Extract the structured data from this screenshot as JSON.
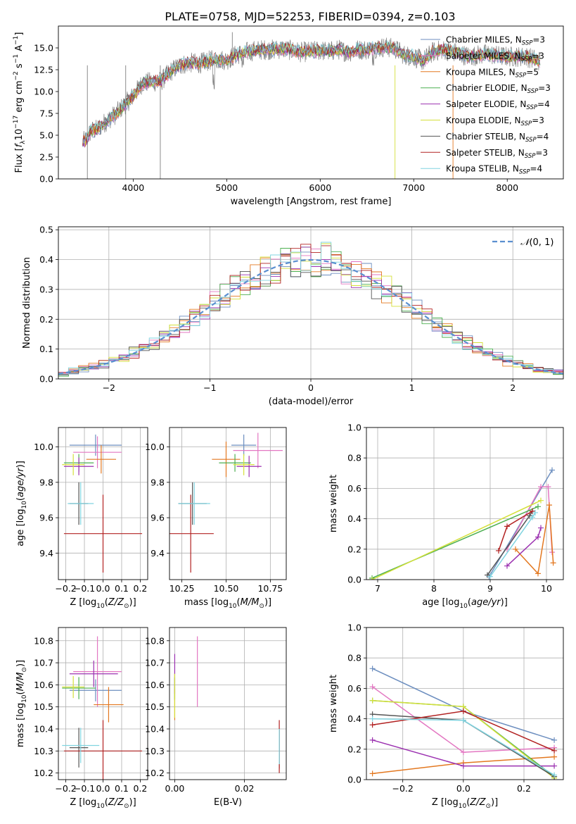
{
  "figure": {
    "title": "PLATE=0758, MJD=52253, FIBERID=0394, z=0.103"
  },
  "chart_data": [
    {
      "id": "spectrum",
      "type": "line",
      "xlabel": "wavelength [Angstrom, rest frame]",
      "ylabel": "Flux [f_λ 10^-17 erg cm^-2 s^-1 A^-1]",
      "xlim": [
        3200,
        8600
      ],
      "ylim": [
        0,
        17.5
      ],
      "xticks": [
        4000,
        5000,
        6000,
        7000,
        8000
      ],
      "yticks": [
        0.0,
        2.5,
        5.0,
        7.5,
        10.0,
        12.5,
        15.0
      ],
      "grid": false,
      "legend_position": "right",
      "data_color": "#7f7f7f",
      "data_x": [
        3460,
        3500,
        3550,
        3600,
        3650,
        3700,
        3800,
        3900,
        4000,
        4100,
        4200,
        4300,
        4400,
        4500,
        4600,
        4700,
        4800,
        4900,
        5000,
        5100,
        5200,
        5300,
        5400,
        5500,
        5600,
        5700,
        5800,
        5900,
        6000,
        6100,
        6200,
        6300,
        6400,
        6500,
        6600,
        6700,
        6800,
        6900,
        7000,
        7100,
        7200,
        7300,
        7400,
        7500,
        7600,
        7700,
        7800,
        7900,
        8000,
        8100,
        8200,
        8350
      ],
      "data_y": [
        4.2,
        4.5,
        5.5,
        5.6,
        6.0,
        6.5,
        7.3,
        8.4,
        9.5,
        11.0,
        11.1,
        11.2,
        12.3,
        13.0,
        13.3,
        13.2,
        13.5,
        13.7,
        13.6,
        14.2,
        14.5,
        14.7,
        14.8,
        14.8,
        14.9,
        14.7,
        14.5,
        14.6,
        14.7,
        14.6,
        14.8,
        14.5,
        14.8,
        14.8,
        15.0,
        15.1,
        14.9,
        14.2,
        14.0,
        13.5,
        14.5,
        14.8,
        14.6,
        14.3,
        14.0,
        14.2,
        14.3,
        14.1,
        14.0,
        14.0,
        14.0,
        13.5
      ],
      "series": [
        {
          "name": "Chabrier MILES, N_SSP=3",
          "label_main": "Chabrier MILES, N",
          "label_sub": "SSP",
          "label_tail": "=3",
          "color": "#6c8ebf"
        },
        {
          "name": "Salpeter MILES, N_SSP=3",
          "label_main": "Salpeter MILES, N",
          "label_sub": "SSP",
          "label_tail": "=3",
          "color": "#e377c2"
        },
        {
          "name": "Kroupa MILES, N_SSP=5",
          "label_main": "Kroupa MILES, N",
          "label_sub": "SSP",
          "label_tail": "=5",
          "color": "#e37820"
        },
        {
          "name": "Chabrier ELODIE, N_SSP=3",
          "label_main": "Chabrier ELODIE, N",
          "label_sub": "SSP",
          "label_tail": "=3",
          "color": "#4caf50"
        },
        {
          "name": "Salpeter ELODIE, N_SSP=4",
          "label_main": "Salpeter ELODIE, N",
          "label_sub": "SSP",
          "label_tail": "=4",
          "color": "#9b30b0"
        },
        {
          "name": "Kroupa ELODIE, N_SSP=3",
          "label_main": "Kroupa ELODIE, N",
          "label_sub": "SSP",
          "label_tail": "=3",
          "color": "#d4e03a"
        },
        {
          "name": "Chabrier STELIB, N_SSP=4",
          "label_main": "Chabrier STELIB, N",
          "label_sub": "SSP",
          "label_tail": "=4",
          "color": "#555555"
        },
        {
          "name": "Salpeter STELIB, N_SSP=3",
          "label_main": "Salpeter STELIB, N",
          "label_sub": "SSP",
          "label_tail": "=3",
          "color": "#b22222"
        },
        {
          "name": "Kroupa STELIB, N_SSP=4",
          "label_main": "Kroupa STELIB, N",
          "label_sub": "SSP",
          "label_tail": "=4",
          "color": "#80d4e0"
        }
      ]
    },
    {
      "id": "residuals",
      "type": "line",
      "xlabel": "(data-model)/error",
      "ylabel": "Normed distribution",
      "xlim": [
        -2.5,
        2.5
      ],
      "ylim": [
        0,
        0.51
      ],
      "xticks": [
        -2,
        -1,
        0,
        1,
        2
      ],
      "yticks": [
        0.0,
        0.1,
        0.2,
        0.3,
        0.4,
        0.5
      ],
      "grid": true,
      "legend_position": "top-right",
      "reference_label": "N(0,1)",
      "reference_color": "#5b8fd0",
      "bin_width": 0.1
    },
    {
      "id": "age_vs_Z",
      "type": "scatter",
      "xlabel": "Z [log10(Z/Z☉)]",
      "ylabel": "age [log10(age/yr)]",
      "xlim": [
        -0.24,
        0.24
      ],
      "ylim": [
        9.25,
        10.11
      ],
      "xticks": [
        -0.2,
        -0.1,
        0.0,
        0.1,
        0.2
      ],
      "yticks": [
        9.4,
        9.6,
        9.8,
        10.0
      ],
      "grid": true,
      "points": [
        {
          "series": 0,
          "x": -0.04,
          "y": 10.01,
          "xerr": 0.14,
          "yerr": 0.06
        },
        {
          "series": 1,
          "x": -0.03,
          "y": 9.97,
          "xerr": 0.13,
          "yerr": 0.09
        },
        {
          "series": 2,
          "x": -0.01,
          "y": 9.93,
          "xerr": 0.08,
          "yerr": 0.08
        },
        {
          "series": 3,
          "x": -0.13,
          "y": 9.91,
          "xerr": 0.08,
          "yerr": 0.05
        },
        {
          "series": 4,
          "x": -0.13,
          "y": 9.89,
          "xerr": 0.08,
          "yerr": 0.05
        },
        {
          "series": 5,
          "x": -0.16,
          "y": 9.9,
          "xerr": 0.06,
          "yerr": 0.06
        },
        {
          "series": 6,
          "x": -0.13,
          "y": 9.68,
          "xerr": 0.05,
          "yerr": 0.12
        },
        {
          "series": 7,
          "x": 0.0,
          "y": 9.51,
          "xerr": 0.21,
          "yerr": 0.22
        },
        {
          "series": 8,
          "x": -0.12,
          "y": 9.68,
          "xerr": 0.07,
          "yerr": 0.12
        }
      ]
    },
    {
      "id": "age_vs_mass",
      "type": "scatter",
      "xlabel": "mass [log10(M/M☉)]",
      "ylabel": "",
      "xlim": [
        10.18,
        10.84
      ],
      "ylim": [
        9.25,
        10.11
      ],
      "xticks": [
        10.25,
        10.5,
        10.75
      ],
      "yticks": [
        9.4,
        9.6,
        9.8,
        10.0
      ],
      "grid": true,
      "points": [
        {
          "series": 0,
          "x": 10.6,
          "y": 10.01,
          "xerr": 0.07,
          "yerr": 0.06
        },
        {
          "series": 1,
          "x": 10.68,
          "y": 9.98,
          "xerr": 0.14,
          "yerr": 0.1
        },
        {
          "series": 2,
          "x": 10.5,
          "y": 9.93,
          "xerr": 0.08,
          "yerr": 0.1
        },
        {
          "series": 3,
          "x": 10.55,
          "y": 9.91,
          "xerr": 0.09,
          "yerr": 0.05
        },
        {
          "series": 4,
          "x": 10.63,
          "y": 9.89,
          "xerr": 0.07,
          "yerr": 0.06
        },
        {
          "series": 5,
          "x": 10.6,
          "y": 9.9,
          "xerr": 0.06,
          "yerr": 0.06
        },
        {
          "series": 6,
          "x": 10.31,
          "y": 9.68,
          "xerr": 0.08,
          "yerr": 0.12
        },
        {
          "series": 7,
          "x": 10.3,
          "y": 9.51,
          "xerr": 0.13,
          "yerr": 0.22
        },
        {
          "series": 8,
          "x": 10.32,
          "y": 9.68,
          "xerr": 0.09,
          "yerr": 0.12
        }
      ]
    },
    {
      "id": "weight_vs_age",
      "type": "line",
      "xlabel": "age [log10(age/yr)]",
      "ylabel": "mass weight",
      "xlim": [
        6.8,
        10.3
      ],
      "ylim": [
        0,
        1.0
      ],
      "xticks": [
        7,
        8,
        9,
        10
      ],
      "yticks": [
        0.0,
        0.2,
        0.4,
        0.6,
        0.8,
        1.0
      ],
      "grid": true,
      "series_points": [
        {
          "series": 0,
          "x": [
            8.98,
            10.1
          ],
          "y": [
            0.02,
            0.72
          ]
        },
        {
          "series": 1,
          "x": [
            9.3,
            9.9,
            10.03,
            10.1
          ],
          "y": [
            0.2,
            0.61,
            0.61,
            0.18
          ]
        },
        {
          "series": 2,
          "x": [
            9.45,
            9.85,
            10.05,
            10.12
          ],
          "y": [
            0.2,
            0.04,
            0.49,
            0.11
          ]
        },
        {
          "series": 3,
          "x": [
            6.9,
            9.85
          ],
          "y": [
            0.01,
            0.48
          ]
        },
        {
          "series": 4,
          "x": [
            9.3,
            9.85,
            9.9
          ],
          "y": [
            0.09,
            0.28,
            0.34
          ]
        },
        {
          "series": 5,
          "x": [
            6.9,
            9.9
          ],
          "y": [
            0.0,
            0.52
          ]
        },
        {
          "series": 6,
          "x": [
            8.95,
            9.7,
            9.75
          ],
          "y": [
            0.03,
            0.42,
            0.45
          ]
        },
        {
          "series": 7,
          "x": [
            9.15,
            9.3,
            9.75
          ],
          "y": [
            0.19,
            0.35,
            0.45
          ]
        },
        {
          "series": 8,
          "x": [
            9.0,
            9.75,
            9.8
          ],
          "y": [
            0.02,
            0.41,
            0.44
          ]
        }
      ]
    },
    {
      "id": "mass_vs_Z",
      "type": "scatter",
      "xlabel": "Z [log10(Z/Z☉)]",
      "ylabel": "mass [log10(M/M☉)]",
      "xlim": [
        -0.24,
        0.24
      ],
      "ylim": [
        10.17,
        10.86
      ],
      "xticks": [
        -0.2,
        -0.1,
        0.0,
        0.1,
        0.2
      ],
      "yticks": [
        10.2,
        10.3,
        10.4,
        10.5,
        10.6,
        10.7,
        10.8
      ],
      "grid": true,
      "points": [
        {
          "series": 0,
          "x": -0.04,
          "y": 10.575,
          "xerr": 0.14,
          "yerr": 0.05
        },
        {
          "series": 1,
          "x": -0.03,
          "y": 10.66,
          "xerr": 0.13,
          "yerr": 0.16
        },
        {
          "series": 2,
          "x": 0.03,
          "y": 10.51,
          "xerr": 0.08,
          "yerr": 0.08
        },
        {
          "series": 3,
          "x": -0.13,
          "y": 10.585,
          "xerr": 0.09,
          "yerr": 0.05
        },
        {
          "series": 4,
          "x": -0.05,
          "y": 10.65,
          "xerr": 0.13,
          "yerr": 0.06
        },
        {
          "series": 5,
          "x": -0.16,
          "y": 10.59,
          "xerr": 0.06,
          "yerr": 0.05
        },
        {
          "series": 6,
          "x": -0.13,
          "y": 10.315,
          "xerr": 0.05,
          "yerr": 0.09
        },
        {
          "series": 7,
          "x": 0.0,
          "y": 10.3,
          "xerr": 0.21,
          "yerr": 0.14
        },
        {
          "series": 8,
          "x": -0.12,
          "y": 10.325,
          "xerr": 0.1,
          "yerr": 0.08
        }
      ]
    },
    {
      "id": "mass_vs_EBV",
      "type": "scatter",
      "xlabel": "E(B-V)",
      "ylabel": "",
      "xlim": [
        -0.0015,
        0.032
      ],
      "ylim": [
        10.17,
        10.86
      ],
      "xticks": [
        0.0,
        0.02
      ],
      "yticks": [
        10.2,
        10.3,
        10.4,
        10.5,
        10.6,
        10.7,
        10.8
      ],
      "grid": true,
      "points": [
        {
          "series": 0,
          "x": 0.0,
          "y": 10.58,
          "xerr": 0,
          "yerr": 0.05
        },
        {
          "series": 1,
          "x": 0.0065,
          "y": 10.66,
          "xerr": 0,
          "yerr": 0.16
        },
        {
          "series": 2,
          "x": 0.0,
          "y": 10.51,
          "xerr": 0,
          "yerr": 0.07
        },
        {
          "series": 3,
          "x": 0.0,
          "y": 10.585,
          "xerr": 0,
          "yerr": 0.05
        },
        {
          "series": 4,
          "x": 0.0,
          "y": 10.65,
          "xerr": 0,
          "yerr": 0.09
        },
        {
          "series": 5,
          "x": 0.0,
          "y": 10.55,
          "xerr": 0,
          "yerr": 0.1
        },
        {
          "series": 6,
          "x": 0.03,
          "y": 10.31,
          "xerr": 0,
          "yerr": 0.09
        },
        {
          "series": 7,
          "x": 0.03,
          "y": 10.32,
          "xerr": 0,
          "yerr": 0.12
        },
        {
          "series": 8,
          "x": 0.03,
          "y": 10.32,
          "xerr": 0,
          "yerr": 0.08
        }
      ]
    },
    {
      "id": "weight_vs_Z",
      "type": "line",
      "xlabel": "Z [log10(Z/Z☉)]",
      "ylabel": "mass weight",
      "xlim": [
        -0.32,
        0.33
      ],
      "ylim": [
        0,
        1.0
      ],
      "xticks": [
        -0.2,
        0.0,
        0.2
      ],
      "yticks": [
        0.0,
        0.2,
        0.4,
        0.6,
        0.8,
        1.0
      ],
      "grid": true,
      "series_points": [
        {
          "series": 0,
          "x": [
            -0.3,
            0.0,
            0.3
          ],
          "y": [
            0.73,
            0.45,
            0.26
          ]
        },
        {
          "series": 1,
          "x": [
            -0.3,
            0.0,
            0.3
          ],
          "y": [
            0.61,
            0.18,
            0.21
          ]
        },
        {
          "series": 2,
          "x": [
            -0.3,
            0.0,
            0.3
          ],
          "y": [
            0.04,
            0.11,
            0.15
          ]
        },
        {
          "series": 3,
          "x": [
            -0.3,
            0.0,
            0.3
          ],
          "y": [
            0.52,
            0.48,
            0.02
          ]
        },
        {
          "series": 4,
          "x": [
            -0.3,
            0.0,
            0.3
          ],
          "y": [
            0.26,
            0.09,
            0.09
          ]
        },
        {
          "series": 5,
          "x": [
            -0.3,
            0.0,
            0.3
          ],
          "y": [
            0.52,
            0.48,
            0.01
          ]
        },
        {
          "series": 6,
          "x": [
            -0.3,
            0.0,
            0.3
          ],
          "y": [
            0.43,
            0.39,
            0.02
          ]
        },
        {
          "series": 7,
          "x": [
            -0.3,
            0.0,
            0.3
          ],
          "y": [
            0.36,
            0.45,
            0.19
          ]
        },
        {
          "series": 8,
          "x": [
            -0.3,
            0.0,
            0.3
          ],
          "y": [
            0.4,
            0.39,
            0.03
          ]
        }
      ]
    }
  ]
}
